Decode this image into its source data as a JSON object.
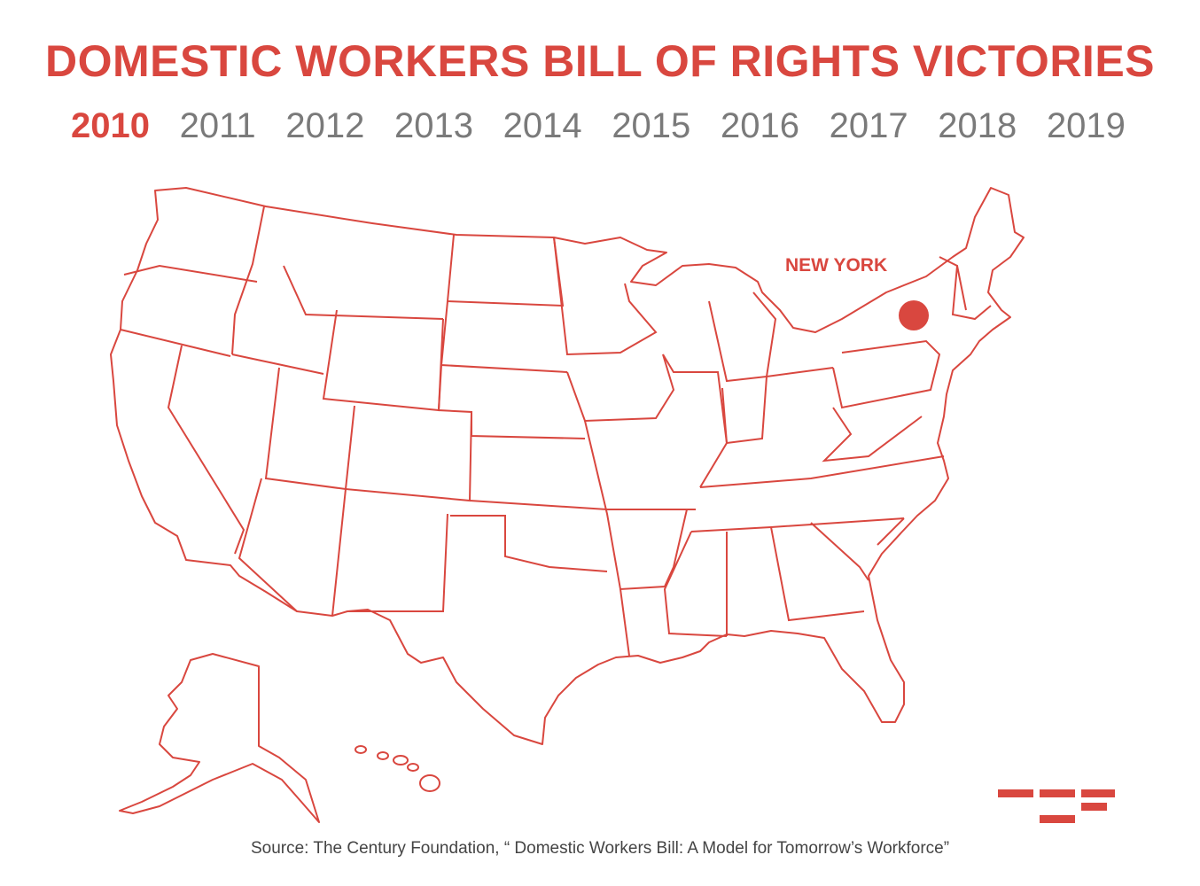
{
  "title": "DOMESTIC WORKERS BILL OF RIGHTS VICTORIES",
  "years": [
    {
      "label": "2010",
      "active": true
    },
    {
      "label": "2011",
      "active": false
    },
    {
      "label": "2012",
      "active": false
    },
    {
      "label": "2013",
      "active": false
    },
    {
      "label": "2014",
      "active": false
    },
    {
      "label": "2015",
      "active": false
    },
    {
      "label": "2016",
      "active": false
    },
    {
      "label": "2017",
      "active": false
    },
    {
      "label": "2018",
      "active": false
    },
    {
      "label": "2019",
      "active": false
    }
  ],
  "marker": {
    "label": "NEW YORK"
  },
  "source": "Source: The Century Foundation, “ Domestic Workers Bill: A Model for Tomorrow’s Workforce”",
  "colors": {
    "accent": "#d9473f",
    "inactive_year": "#7a7a7a",
    "source_text": "#444444"
  }
}
